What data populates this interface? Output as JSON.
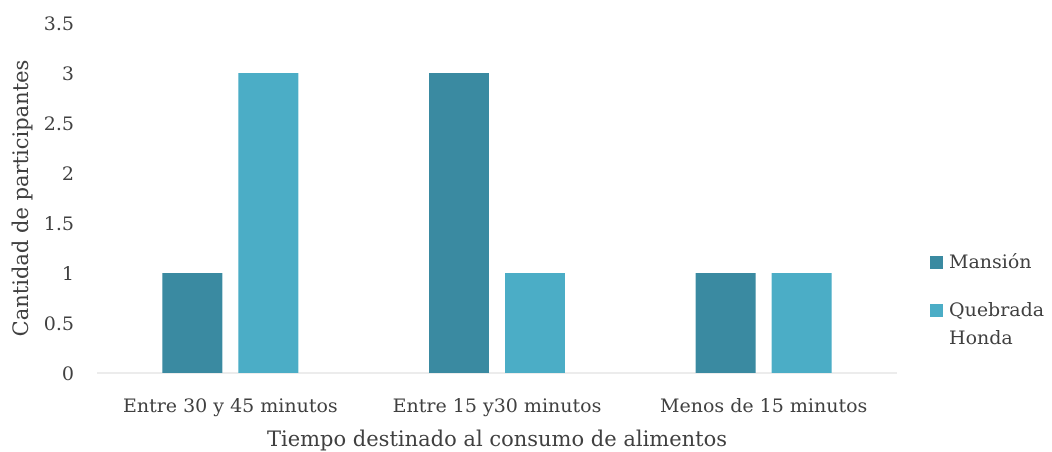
{
  "chart_data": {
    "type": "bar",
    "title": "",
    "xlabel": "Tiempo destinado al consumo de alimentos",
    "ylabel": "Cantidad de participantes",
    "categories": [
      "Entre 30 y 45 minutos",
      "Entre 15 y30 minutos",
      "Menos de 15 minutos"
    ],
    "series": [
      {
        "name": "Mansión",
        "values": [
          1,
          3,
          1
        ],
        "color": "#3a8aa1"
      },
      {
        "name": "Quebrada Honda",
        "values": [
          3,
          1,
          1
        ],
        "color": "#4badc6"
      }
    ],
    "ylim": [
      0,
      3.5
    ],
    "yticks": [
      "0",
      "0.5",
      "1",
      "1.5",
      "2",
      "2.5",
      "3",
      "3.5"
    ],
    "grid": false,
    "legend": "right"
  }
}
